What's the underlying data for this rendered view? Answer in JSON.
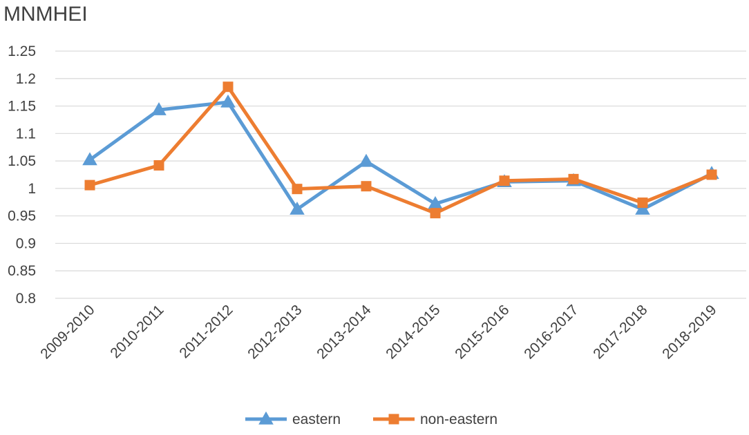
{
  "chart_data": {
    "type": "line",
    "title": "MNMHEI",
    "xlabel": "",
    "ylabel": "",
    "categories": [
      "2009-2010",
      "2010-2011",
      "2011-2012",
      "2012-2013",
      "2013-2014",
      "2014-2015",
      "2015-2016",
      "2016-2017",
      "2017-2018",
      "2018-2019"
    ],
    "ylim": [
      0.8,
      1.25
    ],
    "yticks": [
      "0.8",
      "0.85",
      "0.9",
      "0.95",
      "1",
      "1.05",
      "1.1",
      "1.15",
      "1.2",
      "1.25"
    ],
    "grid": true,
    "legend_position": "bottom",
    "series": [
      {
        "name": "eastern",
        "marker": "triangle",
        "color": "#5B9BD5",
        "values": [
          1.052,
          1.143,
          1.157,
          0.962,
          1.049,
          0.972,
          1.012,
          1.014,
          0.962,
          1.027
        ]
      },
      {
        "name": "non-eastern",
        "marker": "square",
        "color": "#ED7D31",
        "values": [
          1.006,
          1.042,
          1.185,
          0.999,
          1.004,
          0.955,
          1.014,
          1.017,
          0.974,
          1.025
        ]
      }
    ]
  }
}
